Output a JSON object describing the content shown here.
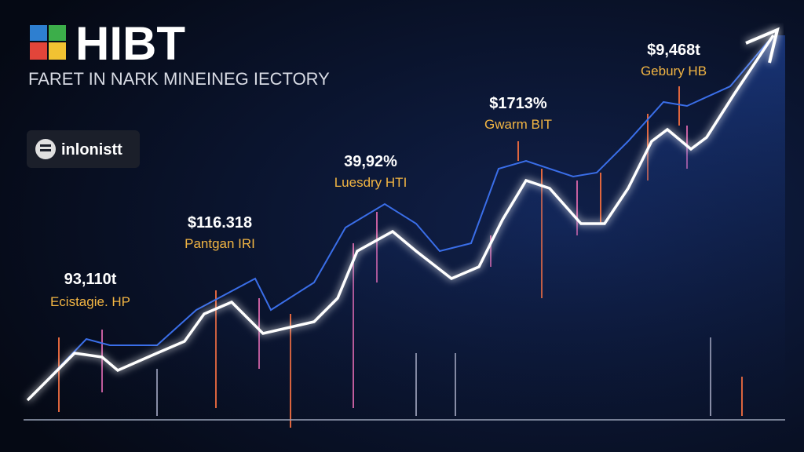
{
  "header": {
    "title": "HIBT",
    "subtitle": "FARET IN NARK MINEINEG IECTORY"
  },
  "badge": {
    "label": "inlonistt"
  },
  "annotations": [
    {
      "value": "93,110t",
      "label": "Ecistagie. HP"
    },
    {
      "value": "$116.318",
      "label": "Pantgan IRI"
    },
    {
      "value": "39,92%",
      "label": "Luesdry HTI"
    },
    {
      "value": "$1713%",
      "label": "Gwarm BIT"
    },
    {
      "value": "$9,468t",
      "label": "Gebury HB"
    }
  ]
}
